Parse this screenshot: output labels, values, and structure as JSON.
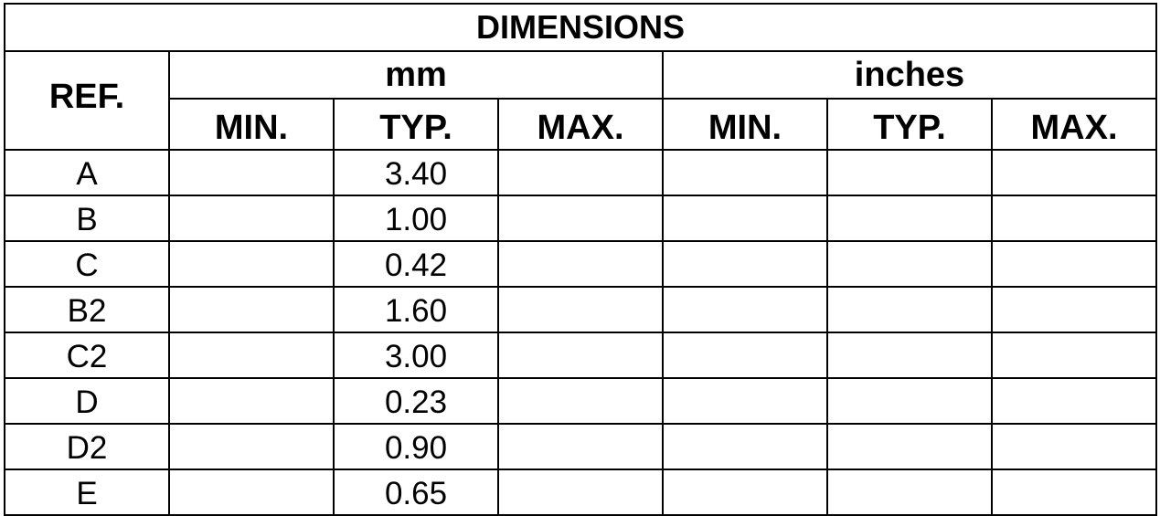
{
  "title": "DIMENSIONS",
  "ref_header": "REF.",
  "units": [
    "mm",
    "inches"
  ],
  "subheaders": [
    "MIN.",
    "TYP.",
    "MAX.",
    "MIN.",
    "TYP.",
    "MAX."
  ],
  "rows": [
    {
      "ref": "A",
      "mm_min": "",
      "mm_typ": "3.40",
      "mm_max": "",
      "in_min": "",
      "in_typ": "",
      "in_max": ""
    },
    {
      "ref": "B",
      "mm_min": "",
      "mm_typ": "1.00",
      "mm_max": "",
      "in_min": "",
      "in_typ": "",
      "in_max": ""
    },
    {
      "ref": "C",
      "mm_min": "",
      "mm_typ": "0.42",
      "mm_max": "",
      "in_min": "",
      "in_typ": "",
      "in_max": ""
    },
    {
      "ref": "B2",
      "mm_min": "",
      "mm_typ": "1.60",
      "mm_max": "",
      "in_min": "",
      "in_typ": "",
      "in_max": ""
    },
    {
      "ref": "C2",
      "mm_min": "",
      "mm_typ": "3.00",
      "mm_max": "",
      "in_min": "",
      "in_typ": "",
      "in_max": ""
    },
    {
      "ref": "D",
      "mm_min": "",
      "mm_typ": "0.23",
      "mm_max": "",
      "in_min": "",
      "in_typ": "",
      "in_max": ""
    },
    {
      "ref": "D2",
      "mm_min": "",
      "mm_typ": "0.90",
      "mm_max": "",
      "in_min": "",
      "in_typ": "",
      "in_max": ""
    },
    {
      "ref": "E",
      "mm_min": "",
      "mm_typ": "0.65",
      "mm_max": "",
      "in_min": "",
      "in_typ": "",
      "in_max": ""
    }
  ]
}
